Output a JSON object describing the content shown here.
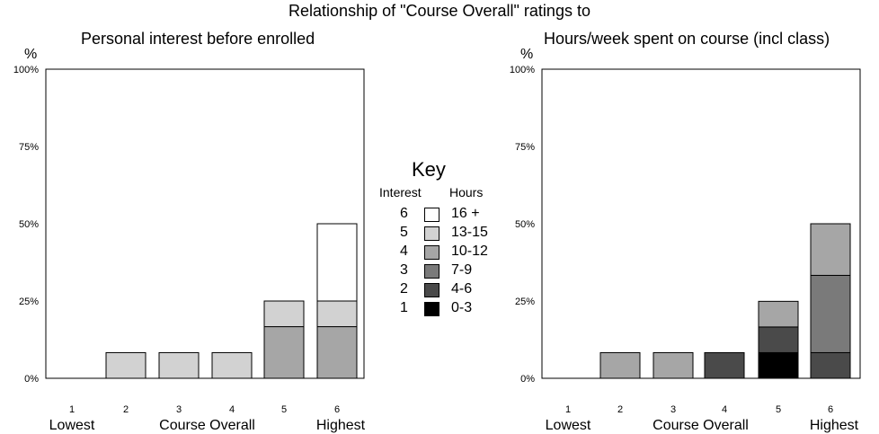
{
  "title": "Relationship of \"Course Overall\" ratings to",
  "colors": {
    "shade1": "#000000",
    "shade2": "#4a4a4a",
    "shade3": "#7a7a7a",
    "shade4": "#a6a6a6",
    "shade5": "#d2d2d2",
    "shade6": "#ffffff"
  },
  "key": {
    "title": "Key",
    "interest_header": "Interest",
    "hours_header": "Hours",
    "rows": [
      {
        "interest": "6",
        "hours": "16 +",
        "color": "#ffffff"
      },
      {
        "interest": "5",
        "hours": "13-15",
        "color": "#d2d2d2"
      },
      {
        "interest": "4",
        "hours": "10-12",
        "color": "#a6a6a6"
      },
      {
        "interest": "3",
        "hours": "7-9",
        "color": "#7a7a7a"
      },
      {
        "interest": "2",
        "hours": "4-6",
        "color": "#4a4a4a"
      },
      {
        "interest": "1",
        "hours": "0-3",
        "color": "#000000"
      }
    ]
  },
  "chart_data": [
    {
      "type": "bar",
      "stacked": true,
      "title": "Personal interest before enrolled",
      "y_unit": "%",
      "xlabel": "Course Overall",
      "x_low_label": "Lowest",
      "x_high_label": "Highest",
      "categories": [
        "1",
        "2",
        "3",
        "4",
        "5",
        "6"
      ],
      "yticks": [
        "0%",
        "25%",
        "50%",
        "75%",
        "100%"
      ],
      "ylim": [
        0,
        100
      ],
      "segments": [
        [],
        [
          {
            "level": 5,
            "value": 8.3
          }
        ],
        [
          {
            "level": 5,
            "value": 8.3
          }
        ],
        [
          {
            "level": 5,
            "value": 8.3
          }
        ],
        [
          {
            "level": 4,
            "value": 16.7
          },
          {
            "level": 5,
            "value": 8.3
          }
        ],
        [
          {
            "level": 4,
            "value": 16.7
          },
          {
            "level": 5,
            "value": 8.3
          },
          {
            "level": 6,
            "value": 25
          }
        ]
      ]
    },
    {
      "type": "bar",
      "stacked": true,
      "title": "Hours/week spent on course (incl class)",
      "y_unit": "%",
      "xlabel": "Course Overall",
      "x_low_label": "Lowest",
      "x_high_label": "Highest",
      "categories": [
        "1",
        "2",
        "3",
        "4",
        "5",
        "6"
      ],
      "yticks": [
        "0%",
        "25%",
        "50%",
        "75%",
        "100%"
      ],
      "ylim": [
        0,
        100
      ],
      "segments": [
        [],
        [
          {
            "level": 4,
            "value": 8.3
          }
        ],
        [
          {
            "level": 4,
            "value": 8.3
          }
        ],
        [
          {
            "level": 2,
            "value": 8.3
          }
        ],
        [
          {
            "level": 1,
            "value": 8.3
          },
          {
            "level": 2,
            "value": 8.3
          },
          {
            "level": 4,
            "value": 8.3
          }
        ],
        [
          {
            "level": 2,
            "value": 8.3
          },
          {
            "level": 3,
            "value": 25
          },
          {
            "level": 4,
            "value": 16.7
          }
        ]
      ]
    }
  ]
}
